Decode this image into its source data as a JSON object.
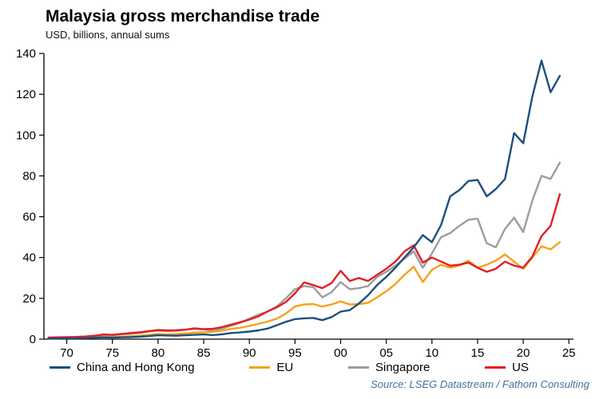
{
  "header": {
    "title": "Malaysia gross merchandise trade",
    "subtitle": "USD, billions, annual sums"
  },
  "source": {
    "text": "Source: LSEG Datastream / Fathom Consulting"
  },
  "colors": {
    "china_hk": "#1d4f7c",
    "eu": "#f7a11a",
    "singapore": "#9d9d9d",
    "us": "#e31e24",
    "axis": "#000000",
    "source_text": "#44709d"
  },
  "chart_data": {
    "type": "line",
    "title": "Malaysia gross merchandise trade",
    "subtitle": "USD, billions, annual sums",
    "grid": false,
    "legend_position": "bottom",
    "xlim": [
      1967.5,
      2025.5
    ],
    "ylim": [
      0,
      140
    ],
    "y_ticks": [
      0,
      20,
      40,
      60,
      80,
      100,
      120,
      140
    ],
    "x_ticks": [
      {
        "year": 1970,
        "label": "70"
      },
      {
        "year": 1975,
        "label": "75"
      },
      {
        "year": 1980,
        "label": "80"
      },
      {
        "year": 1985,
        "label": "85"
      },
      {
        "year": 1990,
        "label": "90"
      },
      {
        "year": 1995,
        "label": "95"
      },
      {
        "year": 2000,
        "label": "00"
      },
      {
        "year": 2005,
        "label": "05"
      },
      {
        "year": 2010,
        "label": "10"
      },
      {
        "year": 2015,
        "label": "15"
      },
      {
        "year": 2020,
        "label": "20"
      },
      {
        "year": 2025,
        "label": "25"
      }
    ],
    "x": [
      1968,
      1969,
      1970,
      1971,
      1972,
      1973,
      1974,
      1975,
      1976,
      1977,
      1978,
      1979,
      1980,
      1981,
      1982,
      1983,
      1984,
      1985,
      1986,
      1987,
      1988,
      1989,
      1990,
      1991,
      1992,
      1993,
      1994,
      1995,
      1996,
      1997,
      1998,
      1999,
      2000,
      2001,
      2002,
      2003,
      2004,
      2005,
      2006,
      2007,
      2008,
      2009,
      2010,
      2011,
      2012,
      2013,
      2014,
      2015,
      2016,
      2017,
      2018,
      2019,
      2020,
      2021,
      2022,
      2023,
      2024
    ],
    "series": [
      {
        "name": "China and Hong Kong",
        "color": "#1d4f7c",
        "values": [
          0.3,
          0.3,
          0.4,
          0.4,
          0.5,
          0.7,
          0.9,
          0.8,
          0.9,
          1.0,
          1.2,
          1.5,
          1.9,
          1.8,
          1.7,
          1.9,
          2.1,
          2.3,
          2.0,
          2.4,
          3.0,
          3.3,
          3.7,
          4.3,
          5.2,
          6.8,
          8.5,
          9.8,
          10.2,
          10.4,
          9.3,
          10.8,
          13.5,
          14.2,
          17.5,
          21.5,
          26.5,
          30.5,
          35.0,
          40.0,
          45.0,
          51.0,
          47.5,
          56.0,
          70.0,
          73.0,
          77.5,
          78.0,
          70.0,
          73.5,
          78.5,
          101.0,
          96.0,
          119.0,
          136.5,
          121.0,
          129.0
        ]
      },
      {
        "name": "EU",
        "color": "#f7a11a",
        "values": [
          0.4,
          0.4,
          0.5,
          0.5,
          0.6,
          0.8,
          1.0,
          1.0,
          1.2,
          1.4,
          1.7,
          2.1,
          2.5,
          2.4,
          2.5,
          2.8,
          3.2,
          3.4,
          3.6,
          4.2,
          5.0,
          5.6,
          6.5,
          7.5,
          8.6,
          10.0,
          12.5,
          16.0,
          17.0,
          17.2,
          16.0,
          17.0,
          18.5,
          17.0,
          17.2,
          17.8,
          20.5,
          23.5,
          27.0,
          31.5,
          35.5,
          28.0,
          34.0,
          36.5,
          35.0,
          36.0,
          38.5,
          35.0,
          36.5,
          38.5,
          41.5,
          38.0,
          34.5,
          40.0,
          45.5,
          44.0,
          47.5
        ]
      },
      {
        "name": "Singapore",
        "color": "#9d9d9d",
        "values": [
          0.6,
          0.7,
          0.8,
          0.9,
          1.0,
          1.4,
          2.0,
          1.9,
          2.3,
          2.6,
          3.0,
          3.8,
          4.6,
          4.4,
          4.5,
          4.7,
          5.0,
          4.8,
          4.2,
          5.2,
          6.5,
          8.0,
          10.0,
          12.0,
          13.5,
          16.0,
          20.0,
          24.5,
          26.0,
          25.5,
          20.5,
          23.0,
          28.0,
          24.5,
          25.0,
          26.0,
          30.5,
          33.0,
          36.0,
          39.5,
          43.0,
          35.0,
          42.0,
          50.0,
          52.0,
          55.5,
          58.5,
          59.0,
          47.0,
          45.0,
          54.0,
          59.5,
          52.5,
          68.0,
          80.0,
          78.5,
          86.5
        ]
      },
      {
        "name": "US",
        "color": "#e31e24",
        "values": [
          0.8,
          0.9,
          1.0,
          1.1,
          1.3,
          1.7,
          2.3,
          2.1,
          2.6,
          3.0,
          3.4,
          3.9,
          4.3,
          4.1,
          4.2,
          4.6,
          5.3,
          4.9,
          5.1,
          5.9,
          7.1,
          8.3,
          9.6,
          11.2,
          13.6,
          15.6,
          18.2,
          22.5,
          27.8,
          26.5,
          25.0,
          27.5,
          33.5,
          28.5,
          30.0,
          28.5,
          31.5,
          34.5,
          38.0,
          43.0,
          46.0,
          37.5,
          40.0,
          38.0,
          36.0,
          36.5,
          37.5,
          35.0,
          33.0,
          34.5,
          38.0,
          36.0,
          35.0,
          40.5,
          50.5,
          55.5,
          71.0
        ]
      }
    ]
  }
}
